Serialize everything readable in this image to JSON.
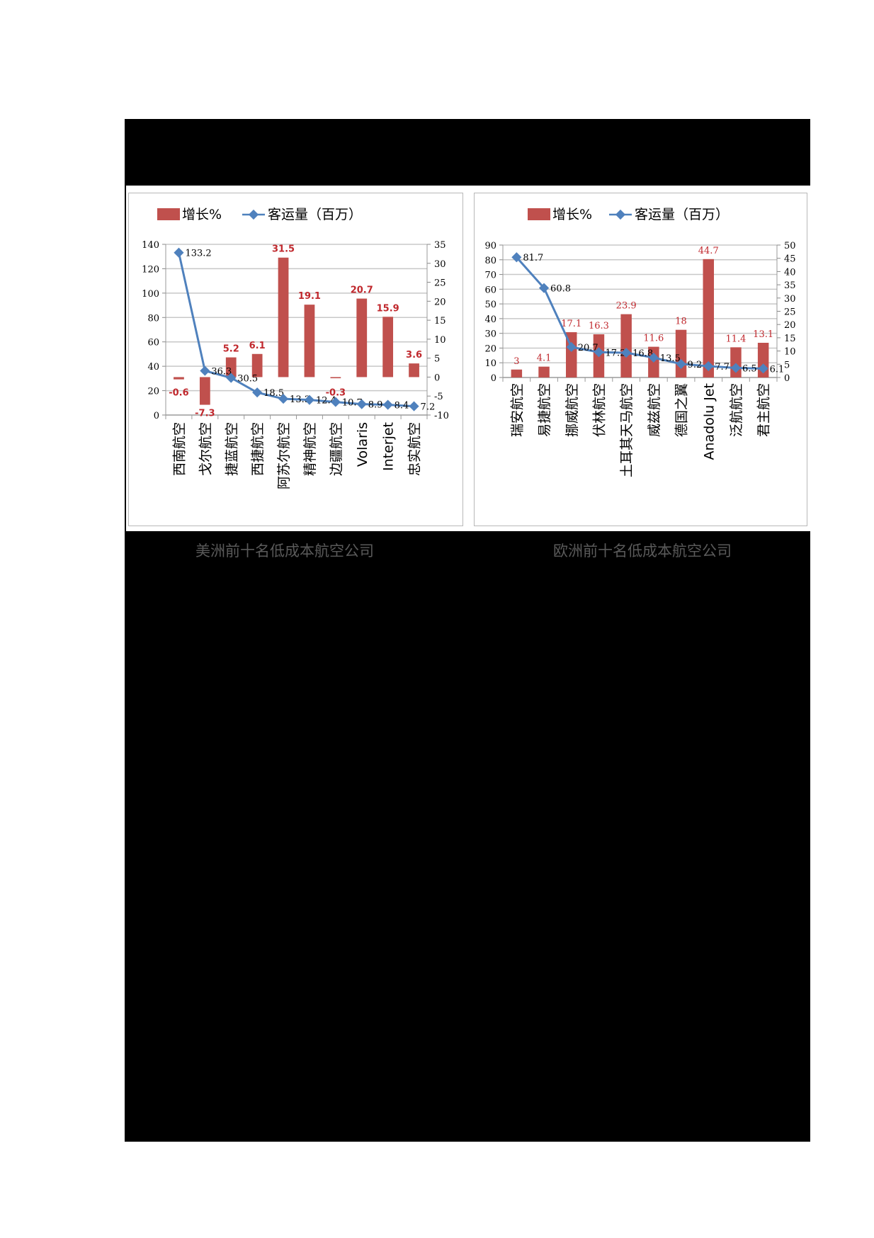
{
  "captions": {
    "left": "美洲前十名低成本航空公司",
    "right": "欧洲前十名低成本航空公司"
  },
  "colors": {
    "bar": "#c0504d",
    "line": "#4f81bd",
    "bar_label": "#c0282d",
    "grid": "#c8c8c8",
    "background_panel": "#000000",
    "caption": "#5a5a5a"
  },
  "chart_data": [
    {
      "type": "bar+line",
      "title": "美洲前十名低成本航空公司",
      "legend": [
        {
          "name": "增长%",
          "kind": "bar"
        },
        {
          "name": "客运量（百万）",
          "kind": "line"
        }
      ],
      "legend_position": "top",
      "grid": true,
      "categories": [
        "西南航空",
        "戈尔航空",
        "捷蓝航空",
        "西捷航空",
        "阿苏尔航空",
        "精神航空",
        "边疆航空",
        "Volaris",
        "Interjet",
        "忠实航空"
      ],
      "series": [
        {
          "name": "增长%",
          "type": "bar",
          "axis": "right",
          "values": [
            -0.6,
            -7.3,
            5.2,
            6.1,
            31.5,
            19.1,
            -0.3,
            20.7,
            15.9,
            3.6
          ]
        },
        {
          "name": "客运量（百万）",
          "type": "line",
          "axis": "left",
          "values": [
            133.2,
            36.3,
            30.5,
            18.5,
            13.3,
            12.4,
            10.7,
            8.9,
            8.4,
            7.2
          ]
        }
      ],
      "y_left": {
        "min": 0,
        "max": 140,
        "step": 20,
        "ticks": [
          "0",
          "20",
          "40",
          "60",
          "80",
          "100",
          "120",
          "140"
        ]
      },
      "y_right": {
        "min": -10,
        "max": 35,
        "step": 5,
        "ticks": [
          "-10",
          "-5",
          "0",
          "5",
          "10",
          "15",
          "20",
          "25",
          "30",
          "35"
        ]
      },
      "xlabel": "",
      "ylabel": ""
    },
    {
      "type": "bar+line",
      "title": "欧洲前十名低成本航空公司",
      "legend": [
        {
          "name": "增长%",
          "kind": "bar"
        },
        {
          "name": "客运量（百万）",
          "kind": "line"
        }
      ],
      "legend_position": "top",
      "grid": true,
      "categories": [
        "瑞安航空",
        "易捷航空",
        "挪威航空",
        "伏林航空",
        "土耳其天马航空",
        "威兹航空",
        "德国之翼",
        "Anadolu Jet",
        "泛航航空",
        "君主航空"
      ],
      "series": [
        {
          "name": "增长%",
          "type": "bar",
          "axis": "right",
          "values": [
            3,
            4.1,
            17.1,
            16.3,
            23.9,
            11.6,
            18,
            44.7,
            11.4,
            13.1
          ]
        },
        {
          "name": "客运量（百万）",
          "type": "line",
          "axis": "left",
          "values": [
            81.7,
            60.8,
            20.7,
            17.2,
            16.8,
            13.5,
            9.2,
            7.7,
            6.5,
            6.1
          ]
        }
      ],
      "y_left": {
        "min": 0,
        "max": 90,
        "step": 10,
        "ticks": [
          "0",
          "10",
          "20",
          "30",
          "40",
          "50",
          "60",
          "70",
          "80",
          "90"
        ]
      },
      "y_right": {
        "min": 0,
        "max": 50,
        "step": 5,
        "ticks": [
          "0",
          "5",
          "10",
          "15",
          "20",
          "25",
          "30",
          "35",
          "40",
          "45",
          "50"
        ]
      },
      "xlabel": "",
      "ylabel": ""
    }
  ]
}
